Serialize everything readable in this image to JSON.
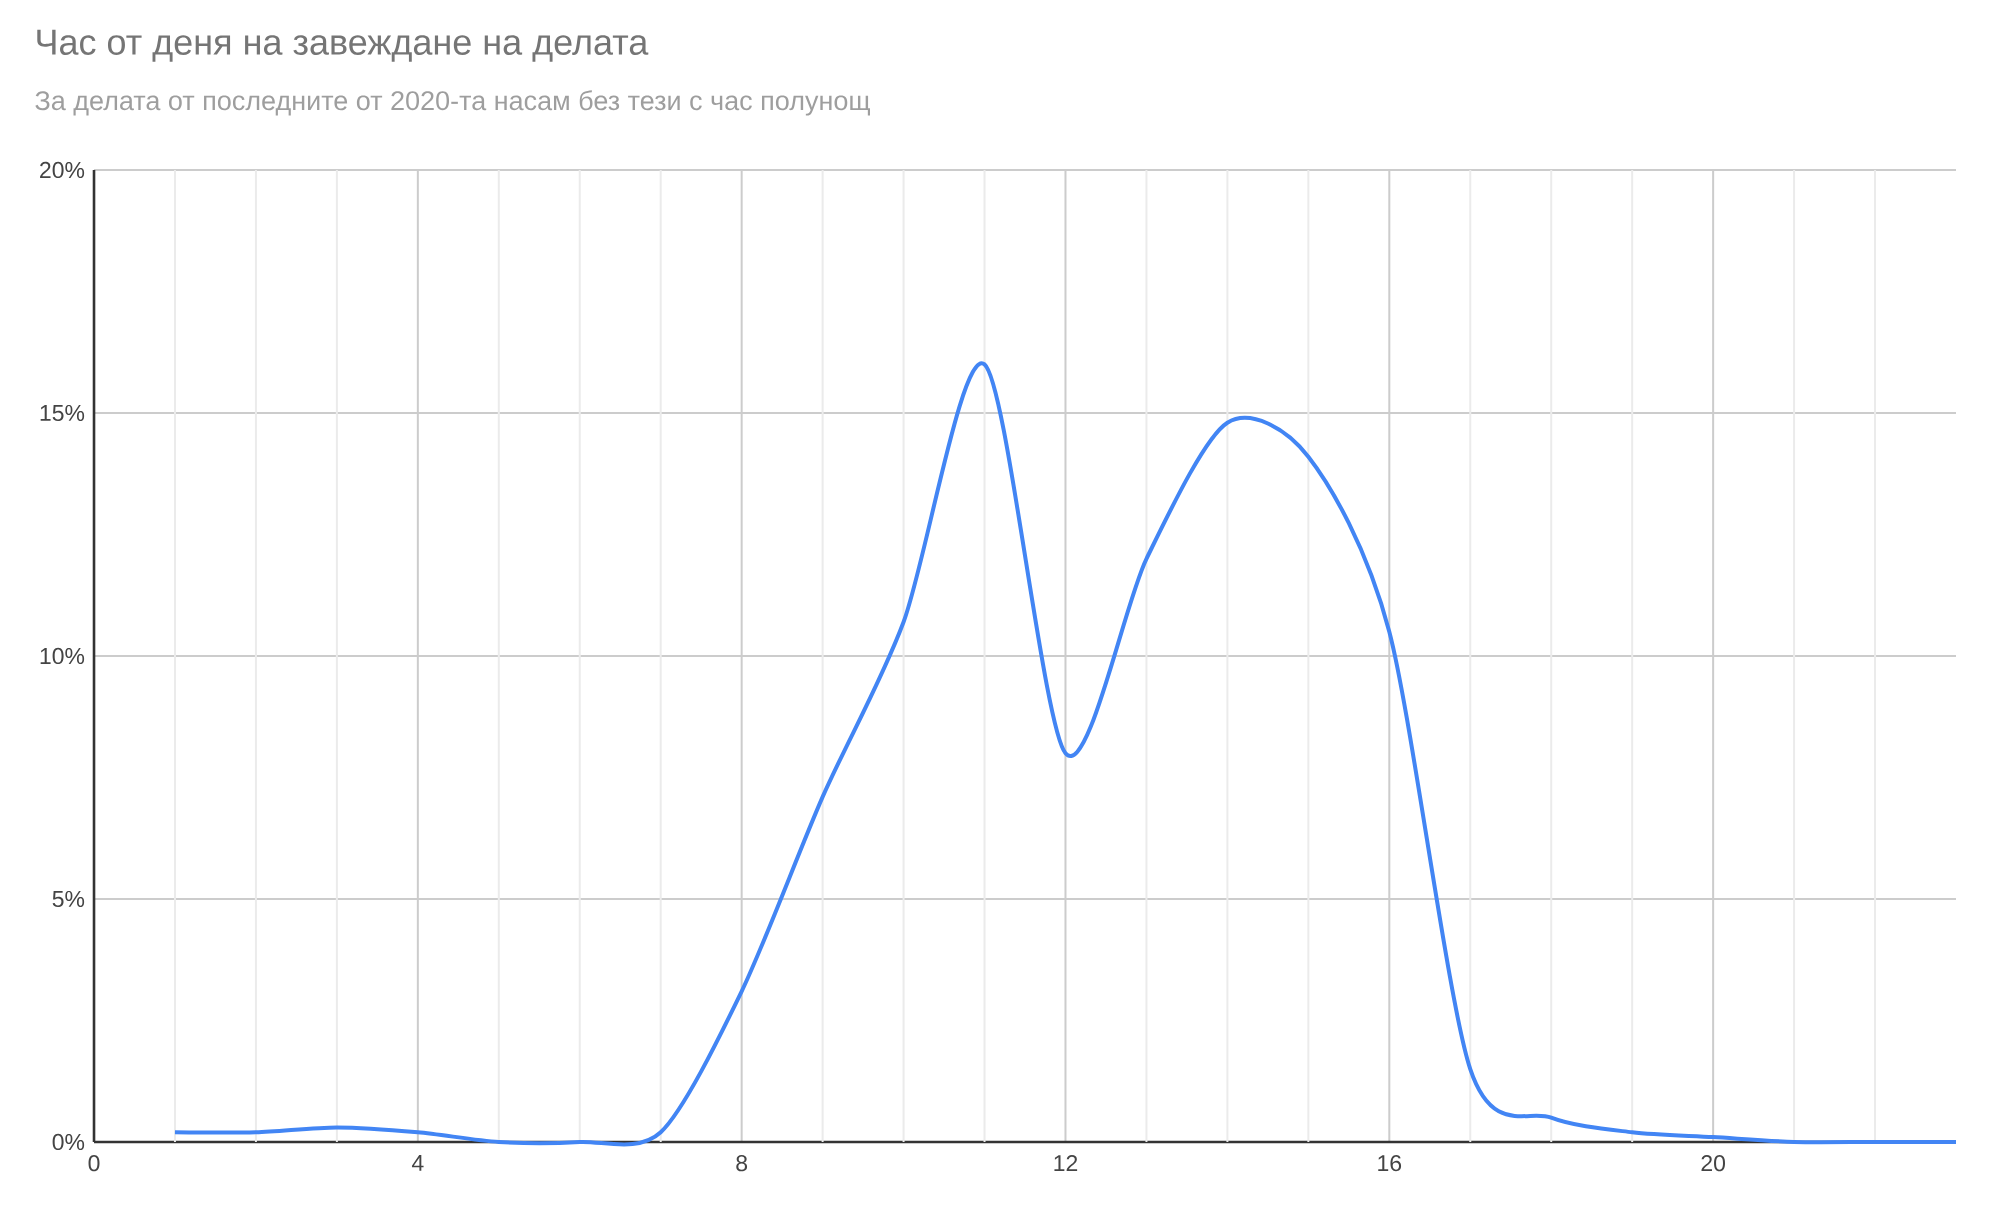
{
  "chart_data": {
    "type": "line",
    "title": "Час от деня на завеждане на делата",
    "subtitle": "За делата от последните от 2020-та насам без тези с час полунощ",
    "x": [
      1,
      2,
      3,
      4,
      5,
      6,
      7,
      8,
      9,
      10,
      11,
      12,
      13,
      14,
      15,
      16,
      17,
      18,
      19,
      20,
      21,
      22,
      23
    ],
    "series": [
      {
        "color": "#4285f4",
        "values": [
          0.2,
          0.2,
          0.3,
          0.2,
          0.0,
          0.0,
          0.2,
          3.1,
          7.1,
          10.7,
          16.0,
          8.0,
          12.0,
          14.8,
          14.1,
          10.5,
          1.5,
          0.5,
          0.2,
          0.1,
          0.0,
          0.0,
          0.0
        ]
      }
    ],
    "xlim": [
      0,
      23
    ],
    "ylim": [
      0,
      20
    ],
    "xticks": [
      0,
      {
        "value": 1,
        "label": null
      },
      {
        "value": 2,
        "label": null
      },
      {
        "value": 3,
        "label": null
      },
      4,
      {
        "value": 5,
        "label": null
      },
      {
        "value": 6,
        "label": null
      },
      {
        "value": 7,
        "label": null
      },
      8,
      {
        "value": 9,
        "label": null
      },
      {
        "value": 10,
        "label": null
      },
      {
        "value": 11,
        "label": null
      },
      12,
      {
        "value": 13,
        "label": null
      },
      {
        "value": 14,
        "label": null
      },
      {
        "value": 15,
        "label": null
      },
      16,
      {
        "value": 17,
        "label": null
      },
      {
        "value": 18,
        "label": null
      },
      {
        "value": 19,
        "label": null
      },
      20,
      {
        "value": 21,
        "label": null
      },
      {
        "value": 22,
        "label": null
      }
    ],
    "yticks": [
      {
        "value": 0,
        "label": "0%"
      },
      {
        "value": 5,
        "label": "5%"
      },
      {
        "value": 10,
        "label": "10%"
      },
      {
        "value": 15,
        "label": "15%"
      },
      {
        "value": 20,
        "label": "20%"
      }
    ],
    "grid": true
  }
}
